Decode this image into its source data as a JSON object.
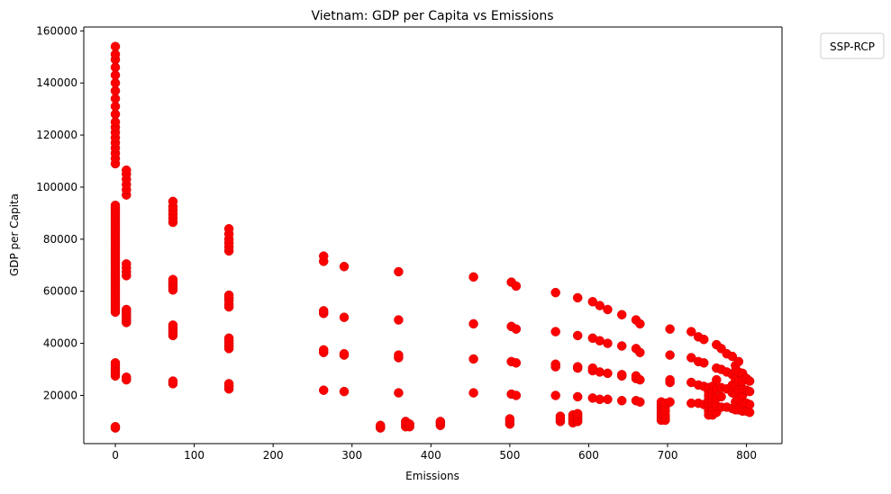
{
  "chart_data": {
    "type": "scatter",
    "title": "Vietnam: GDP per Capita vs Emissions",
    "xlabel": "Emissions",
    "ylabel": "GDP per Capita",
    "xlim": [
      -40,
      845
    ],
    "ylim": [
      1500,
      161500
    ],
    "xticks": [
      0,
      100,
      200,
      300,
      400,
      500,
      600,
      700,
      800
    ],
    "yticks": [
      20000,
      40000,
      60000,
      80000,
      100000,
      120000,
      140000,
      160000
    ],
    "grid": false,
    "legend": {
      "title": "SSP-RCP",
      "placement": "outside-top-right",
      "entries": []
    },
    "marker_color": "#ff0000",
    "columns": [
      {
        "x": 0,
        "y": [
          7500,
          8000,
          27500,
          28500,
          29500,
          30500,
          31500,
          32500,
          52000,
          53000,
          54000,
          55000,
          56000,
          57000,
          58000,
          59000,
          60000,
          61000,
          62000,
          63000,
          64000,
          65000,
          66000,
          67000,
          68000,
          69000,
          70000,
          71000,
          72000,
          73000,
          74000,
          75000,
          76000,
          77000,
          78000,
          79000,
          80000,
          81000,
          82000,
          83000,
          84000,
          85000,
          86000,
          87000,
          88000,
          89000,
          90000,
          91000,
          92000,
          93000,
          109000,
          111000,
          113000,
          115000,
          117000,
          119000,
          121000,
          123000,
          125000,
          128000,
          131000,
          134000,
          137000,
          140000,
          143000,
          146000,
          149000,
          151000,
          154000
        ]
      },
      {
        "x": 14,
        "y": [
          26000,
          27000,
          48000,
          49000,
          50000,
          51000,
          52000,
          53000,
          66000,
          67500,
          69000,
          70500,
          97000,
          99000,
          101000,
          103000,
          105000,
          106500
        ]
      },
      {
        "x": 73,
        "y": [
          24500,
          25500,
          43000,
          44000,
          45000,
          46000,
          47000,
          60500,
          61500,
          62500,
          63500,
          64500,
          86500,
          88000,
          89500,
          91000,
          92500,
          94500
        ]
      },
      {
        "x": 144,
        "y": [
          22500,
          23500,
          24500,
          38000,
          39000,
          40000,
          41000,
          42000,
          54000,
          55000,
          56500,
          57500,
          58500,
          75500,
          77000,
          78500,
          80000,
          82000,
          84000
        ]
      },
      {
        "x": 264,
        "y": [
          22000,
          36500,
          37500,
          51500,
          52500,
          71500,
          73500
        ]
      },
      {
        "x": 290,
        "y": [
          21500,
          35500,
          36000,
          50000,
          69500
        ]
      },
      {
        "x": 336,
        "y": [
          7500,
          8000,
          8500
        ]
      },
      {
        "x": 359,
        "y": [
          21000,
          34500,
          35500,
          49000,
          67500
        ]
      },
      {
        "x": 368,
        "y": [
          8000,
          9000,
          10000
        ]
      },
      {
        "x": 373,
        "y": [
          8000,
          9000
        ]
      },
      {
        "x": 412,
        "y": [
          8500,
          9500,
          10000
        ]
      },
      {
        "x": 454,
        "y": [
          21000,
          34000,
          47500,
          65500
        ]
      },
      {
        "x": 500,
        "y": [
          9000,
          10000,
          11000
        ]
      },
      {
        "x": 502,
        "y": [
          20500,
          33000,
          46500,
          63500
        ]
      },
      {
        "x": 508,
        "y": [
          20000,
          32500,
          45500,
          62000
        ]
      },
      {
        "x": 558,
        "y": [
          20000,
          31000,
          32000,
          44500,
          59500
        ]
      },
      {
        "x": 564,
        "y": [
          10000,
          11000,
          12000
        ]
      },
      {
        "x": 580,
        "y": [
          9500,
          10500,
          11500,
          12500
        ]
      },
      {
        "x": 586,
        "y": [
          10000,
          11000,
          12000,
          13000,
          19500,
          30500,
          31000,
          43000,
          57500
        ]
      },
      {
        "x": 605,
        "y": [
          19000,
          29500,
          30500,
          42000,
          56000
        ]
      },
      {
        "x": 614,
        "y": [
          18500,
          29000,
          41000,
          54500
        ]
      },
      {
        "x": 624,
        "y": [
          18500,
          28500,
          40000,
          53000
        ]
      },
      {
        "x": 642,
        "y": [
          18000,
          27500,
          28000,
          39000,
          51000
        ]
      },
      {
        "x": 660,
        "y": [
          18000,
          26500,
          27500,
          38000,
          49000
        ]
      },
      {
        "x": 665,
        "y": [
          17500,
          26000,
          36500,
          47500
        ]
      },
      {
        "x": 692,
        "y": [
          10500,
          11500,
          12500,
          13500,
          14500,
          15500,
          16500,
          17500
        ]
      },
      {
        "x": 697,
        "y": [
          10500,
          11500,
          12500,
          14000,
          15500,
          17000
        ]
      },
      {
        "x": 703,
        "y": [
          17500,
          25000,
          26000,
          35500,
          45500
        ]
      },
      {
        "x": 730,
        "y": [
          17000,
          25000,
          34500,
          44500
        ]
      },
      {
        "x": 739,
        "y": [
          17000,
          24000,
          33000,
          42500
        ]
      },
      {
        "x": 746,
        "y": [
          16500,
          23500,
          32500,
          41500
        ]
      },
      {
        "x": 752,
        "y": [
          12500,
          14000,
          15500,
          17000,
          18500,
          20000,
          21500,
          23000
        ]
      },
      {
        "x": 757,
        "y": [
          12500,
          14000,
          15500,
          17000,
          18500,
          20000,
          22000,
          23500
        ]
      },
      {
        "x": 762,
        "y": [
          13500,
          16000,
          19000,
          22500,
          26000,
          30500,
          39500
        ]
      },
      {
        "x": 768,
        "y": [
          15500,
          19500,
          23000,
          30000,
          38000
        ]
      },
      {
        "x": 775,
        "y": [
          15500,
          22500,
          29000,
          36000
        ]
      },
      {
        "x": 782,
        "y": [
          15000,
          21000,
          24000,
          28000,
          35000
        ]
      },
      {
        "x": 786,
        "y": [
          14500,
          17500,
          20500,
          23500,
          26500,
          29500,
          31500
        ]
      },
      {
        "x": 790,
        "y": [
          14500,
          18500,
          22000,
          25500,
          29000,
          33000
        ]
      },
      {
        "x": 795,
        "y": [
          14000,
          17000,
          20000,
          22500,
          25500,
          28500
        ]
      },
      {
        "x": 800,
        "y": [
          14000,
          17000,
          22000,
          26500
        ]
      },
      {
        "x": 804,
        "y": [
          13500,
          16500,
          21500,
          25500
        ]
      }
    ]
  }
}
